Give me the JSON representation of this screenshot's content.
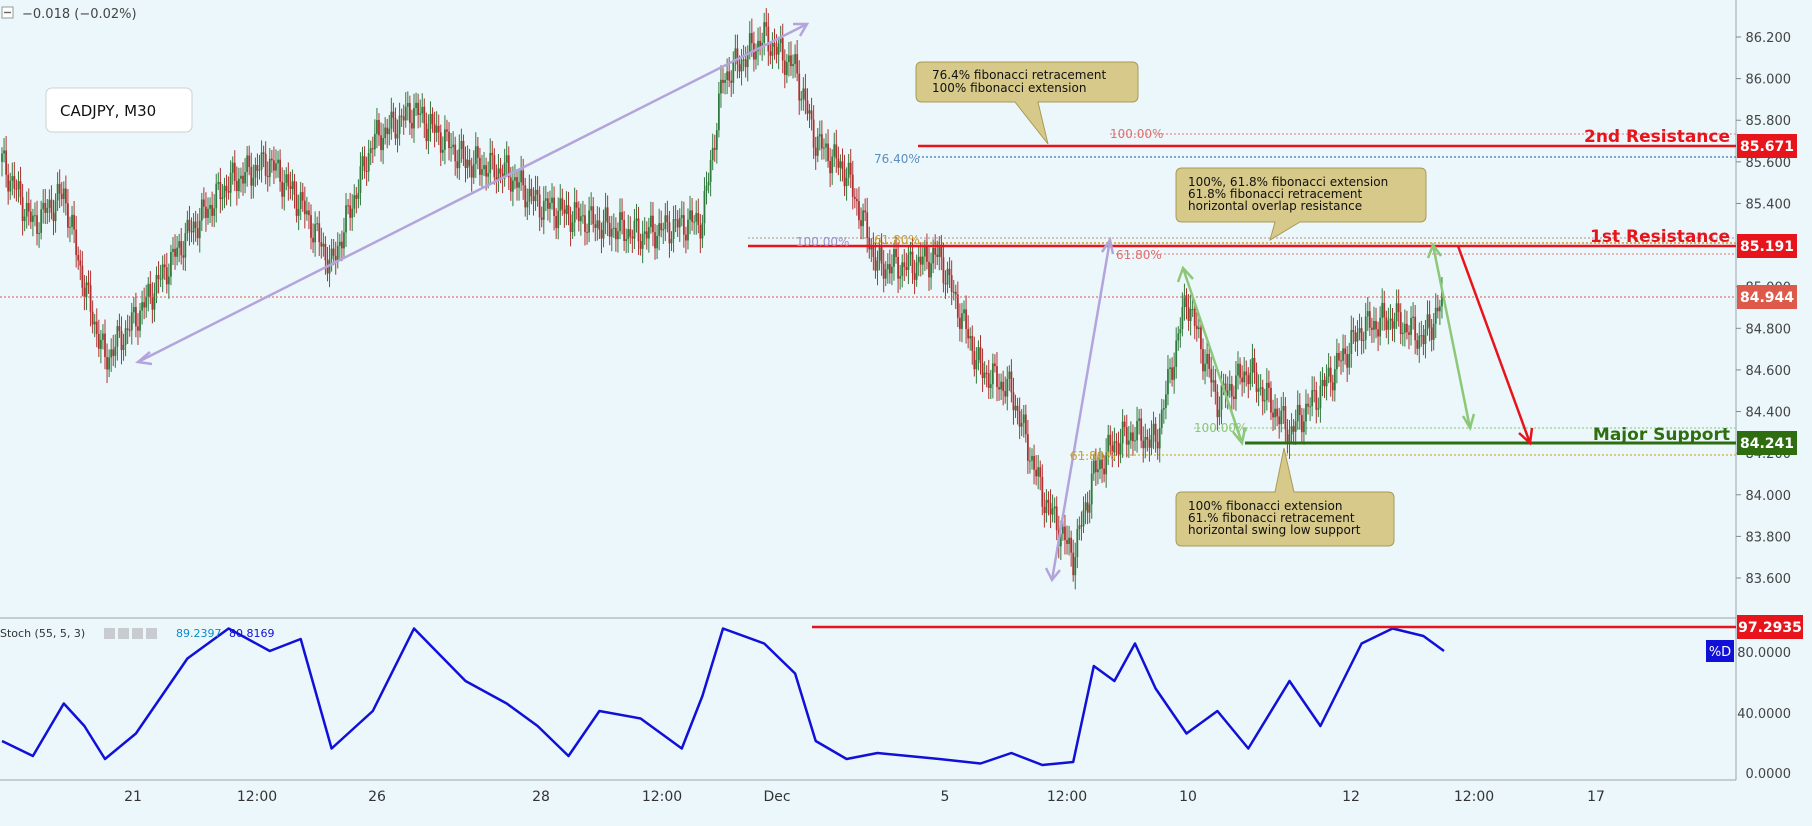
{
  "header": {
    "change_text": "−0.018 (−0.02%)",
    "symbol_label": "CADJPY, M30"
  },
  "colors": {
    "background": "#ecf7fb",
    "bull_candle": "#2f7a3c",
    "bear_candle": "#b03030",
    "stoch_line": "#1010d8",
    "resistance": "#e8141c",
    "support": "#2e6e10",
    "arrow_purple": "#b3a4dc",
    "arrow_green": "#8cc878",
    "arrow_red": "#e8141c",
    "callout_fill": "#d6c98a",
    "current_price": "#dd5a4a"
  },
  "price_levels": {
    "resistance_2": {
      "label": "2nd Resistance",
      "value": "85.671"
    },
    "resistance_1": {
      "label": "1st Resistance",
      "value": "85.191"
    },
    "current": {
      "value": "84.944"
    },
    "support": {
      "label": "Major Support",
      "value": "84.241"
    }
  },
  "fib_labels": {
    "upper_100": "100.00%",
    "upper_76": "76.40%",
    "mid_100": "100.00%",
    "mid_618_a": "61.80%",
    "mid_618_b": "61.80%",
    "low_100": "100.00%",
    "low_618": "61.80%"
  },
  "callouts": {
    "top": [
      "76.4% fibonacci retracement",
      "100% fibonacci extension"
    ],
    "middle": [
      "100%, 61.8% fibonacci extension",
      "61.8% fibonacci retracement",
      "horizontal overlap resistance"
    ],
    "bottom": [
      "100% fibonacci extension",
      "61.% fibonacci retracement",
      "horizontal swing low support"
    ]
  },
  "stoch": {
    "label": "Stoch (55, 5, 3)",
    "value_k": "89.2397",
    "value_d": "80.8169",
    "level_label": "97.2935",
    "d_badge": "%D",
    "ticks": [
      "80.0000",
      "40.0000",
      "0.0000"
    ]
  },
  "chart_data": {
    "type": "line",
    "title": "CADJPY, M30",
    "price_axis": {
      "ylim": [
        83.48,
        86.29
      ],
      "ticks": [
        "86.200",
        "86.000",
        "85.800",
        "85.600",
        "85.400",
        "85.000",
        "84.800",
        "84.600",
        "84.400",
        "84.200",
        "84.000",
        "83.800",
        "83.600"
      ]
    },
    "x_ticks": [
      "21",
      "12:00",
      "26",
      "28",
      "12:00",
      "Dec",
      "5",
      "12:00",
      "10",
      "12",
      "12:00",
      "17"
    ],
    "price_path": {
      "x_index": [
        0,
        3,
        6,
        8,
        10,
        13,
        18,
        22,
        26,
        29,
        32,
        36,
        40,
        45,
        49,
        52,
        55,
        58,
        62,
        66,
        68,
        70,
        74,
        77,
        79,
        82,
        85,
        88,
        91,
        95,
        98,
        101,
        104,
        106,
        108,
        110,
        112,
        115,
        118,
        121,
        125,
        128,
        132,
        135,
        138,
        140
      ],
      "close": [
        85.6,
        85.3,
        85.45,
        85.0,
        84.65,
        84.85,
        85.25,
        85.5,
        85.6,
        85.4,
        85.1,
        85.7,
        85.85,
        85.6,
        85.55,
        85.4,
        85.35,
        85.3,
        85.25,
        85.3,
        85.32,
        86.0,
        86.2,
        86.05,
        85.7,
        85.55,
        85.1,
        85.1,
        85.15,
        84.6,
        84.5,
        84.0,
        83.7,
        84.1,
        84.25,
        84.3,
        84.25,
        84.95,
        84.45,
        84.6,
        84.3,
        84.5,
        84.8,
        84.85,
        84.75,
        84.944
      ]
    },
    "series": [
      {
        "name": "Stoch (55, 5, 3)",
        "x_index": [
          0,
          3,
          6,
          8,
          10,
          13,
          18,
          22,
          26,
          29,
          32,
          36,
          40,
          45,
          49,
          52,
          55,
          58,
          62,
          66,
          68,
          70,
          74,
          77,
          79,
          82,
          85,
          88,
          91,
          95,
          98,
          101,
          104,
          106,
          108,
          110,
          112,
          115,
          118,
          121,
          125,
          128,
          132,
          135,
          138,
          140
        ],
        "values": [
          20,
          10,
          45,
          30,
          8,
          25,
          75,
          95,
          80,
          88,
          15,
          40,
          95,
          60,
          45,
          30,
          10,
          40,
          35,
          15,
          50,
          95,
          85,
          65,
          20,
          8,
          12,
          10,
          8,
          5,
          12,
          4,
          6,
          70,
          60,
          85,
          55,
          25,
          40,
          15,
          60,
          30,
          85,
          95,
          90,
          80
        ]
      }
    ],
    "stoch_ylim": [
      0,
      100
    ]
  }
}
